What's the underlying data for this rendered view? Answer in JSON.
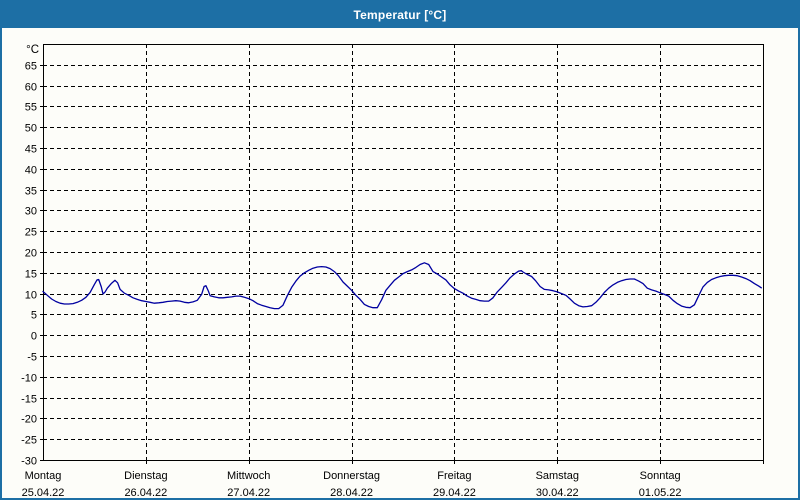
{
  "window": {
    "title": "Temperatur [°C]"
  },
  "colors": {
    "titlebar": "#1d6fa5",
    "window_border": "#1d6fa5",
    "background": "#fdfdf9",
    "frame": "#000000",
    "grid": "#000000",
    "line": "#0000a0",
    "text": "#000000",
    "title_text": "#ffffff"
  },
  "chart_data": {
    "type": "line",
    "title": "Temperatur [°C]",
    "ylabel": "°C",
    "xlabel": "",
    "grid": true,
    "legend": "none",
    "ylim": [
      -30,
      70
    ],
    "yticks": [
      -30,
      -25,
      -20,
      -15,
      -10,
      -5,
      0,
      5,
      10,
      15,
      20,
      25,
      30,
      35,
      40,
      45,
      50,
      55,
      60,
      65
    ],
    "x_unit": "hours",
    "xlim": [
      0,
      168
    ],
    "hours_per_day": 24,
    "days": [
      {
        "name": "Montag",
        "date": "25.04.22"
      },
      {
        "name": "Dienstag",
        "date": "26.04.22"
      },
      {
        "name": "Mittwoch",
        "date": "27.04.22"
      },
      {
        "name": "Donnerstag",
        "date": "28.04.22"
      },
      {
        "name": "Freitag",
        "date": "29.04.22"
      },
      {
        "name": "Samstag",
        "date": "30.04.22"
      },
      {
        "name": "Sonntag",
        "date": "01.05.22"
      }
    ],
    "series": [
      {
        "name": "Temperatur",
        "color": "#0000a0",
        "points": [
          [
            0,
            10.5
          ],
          [
            1,
            9.6
          ],
          [
            2,
            8.7
          ],
          [
            3,
            8.1
          ],
          [
            4,
            7.7
          ],
          [
            5,
            7.5
          ],
          [
            6,
            7.5
          ],
          [
            7,
            7.6
          ],
          [
            8,
            7.9
          ],
          [
            9,
            8.4
          ],
          [
            10,
            9.1
          ],
          [
            11,
            10.3
          ],
          [
            12,
            12.2
          ],
          [
            12.6,
            13.3
          ],
          [
            13,
            13.4
          ],
          [
            13.6,
            11.6
          ],
          [
            14,
            9.9
          ],
          [
            14.5,
            10.4
          ],
          [
            15,
            11.3
          ],
          [
            16,
            12.5
          ],
          [
            16.8,
            13.2
          ],
          [
            17.4,
            12.6
          ],
          [
            18,
            11.0
          ],
          [
            19,
            10.1
          ],
          [
            20,
            9.6
          ],
          [
            21,
            9.0
          ],
          [
            22,
            8.6
          ],
          [
            23,
            8.3
          ],
          [
            24,
            8.1
          ],
          [
            25,
            7.9
          ],
          [
            26,
            7.7
          ],
          [
            27,
            7.8
          ],
          [
            28,
            7.9
          ],
          [
            29,
            8.1
          ],
          [
            30,
            8.2
          ],
          [
            31,
            8.3
          ],
          [
            32,
            8.2
          ],
          [
            33,
            7.9
          ],
          [
            34,
            7.8
          ],
          [
            35,
            8.0
          ],
          [
            36,
            8.4
          ],
          [
            37,
            9.8
          ],
          [
            37.6,
            11.7
          ],
          [
            38,
            11.9
          ],
          [
            38.6,
            10.6
          ],
          [
            39,
            9.5
          ],
          [
            40,
            9.2
          ],
          [
            41,
            9.0
          ],
          [
            42,
            9.0
          ],
          [
            43,
            9.1
          ],
          [
            44,
            9.2
          ],
          [
            45,
            9.4
          ],
          [
            46,
            9.4
          ],
          [
            47,
            9.1
          ],
          [
            48,
            8.8
          ],
          [
            49,
            8.3
          ],
          [
            50,
            7.6
          ],
          [
            51,
            7.2
          ],
          [
            52,
            6.9
          ],
          [
            53,
            6.6
          ],
          [
            54,
            6.4
          ],
          [
            55,
            6.4
          ],
          [
            56,
            7.2
          ],
          [
            57,
            9.5
          ],
          [
            58,
            11.5
          ],
          [
            59,
            13.0
          ],
          [
            60,
            14.2
          ],
          [
            61,
            15.0
          ],
          [
            62,
            15.6
          ],
          [
            63,
            16.1
          ],
          [
            64,
            16.4
          ],
          [
            65,
            16.5
          ],
          [
            66,
            16.4
          ],
          [
            67,
            16.0
          ],
          [
            68,
            15.3
          ],
          [
            69,
            14.2
          ],
          [
            70,
            12.8
          ],
          [
            71,
            11.8
          ],
          [
            72,
            10.8
          ],
          [
            73,
            9.6
          ],
          [
            74,
            8.6
          ],
          [
            75,
            7.4
          ],
          [
            76,
            6.9
          ],
          [
            77,
            6.6
          ],
          [
            78,
            6.6
          ],
          [
            79,
            8.5
          ],
          [
            80,
            10.8
          ],
          [
            81,
            12.0
          ],
          [
            82,
            13.2
          ],
          [
            83,
            14.0
          ],
          [
            84,
            14.8
          ],
          [
            85,
            15.3
          ],
          [
            86,
            15.7
          ],
          [
            87,
            16.3
          ],
          [
            88,
            17.0
          ],
          [
            89,
            17.4
          ],
          [
            90,
            17.0
          ],
          [
            91,
            15.3
          ],
          [
            92,
            14.7
          ],
          [
            93,
            14.0
          ],
          [
            94,
            13.3
          ],
          [
            95,
            12.1
          ],
          [
            96,
            11.2
          ],
          [
            97,
            10.6
          ],
          [
            98,
            10.1
          ],
          [
            99,
            9.4
          ],
          [
            100,
            8.9
          ],
          [
            101,
            8.6
          ],
          [
            102,
            8.3
          ],
          [
            103,
            8.2
          ],
          [
            104,
            8.2
          ],
          [
            105,
            9.0
          ],
          [
            106,
            10.4
          ],
          [
            107,
            11.5
          ],
          [
            108,
            12.6
          ],
          [
            109,
            13.8
          ],
          [
            110,
            14.7
          ],
          [
            111,
            15.4
          ],
          [
            111.6,
            15.5
          ],
          [
            112,
            15.2
          ],
          [
            113,
            14.6
          ],
          [
            114,
            14.1
          ],
          [
            115,
            13.0
          ],
          [
            116,
            11.7
          ],
          [
            117,
            11.0
          ],
          [
            118,
            10.9
          ],
          [
            119,
            10.7
          ],
          [
            120,
            10.4
          ],
          [
            121,
            10.0
          ],
          [
            122,
            9.6
          ],
          [
            123,
            8.7
          ],
          [
            124,
            7.7
          ],
          [
            125,
            7.1
          ],
          [
            126,
            6.8
          ],
          [
            127,
            6.9
          ],
          [
            128,
            7.1
          ],
          [
            129,
            7.9
          ],
          [
            130,
            9.0
          ],
          [
            131,
            10.3
          ],
          [
            132,
            11.3
          ],
          [
            133,
            12.1
          ],
          [
            134,
            12.7
          ],
          [
            135,
            13.1
          ],
          [
            136,
            13.4
          ],
          [
            137,
            13.5
          ],
          [
            138,
            13.5
          ],
          [
            139,
            13.0
          ],
          [
            140,
            12.4
          ],
          [
            141,
            11.3
          ],
          [
            142,
            10.9
          ],
          [
            143,
            10.6
          ],
          [
            144,
            10.2
          ],
          [
            145,
            9.8
          ],
          [
            146,
            9.4
          ],
          [
            147,
            8.4
          ],
          [
            148,
            7.6
          ],
          [
            149,
            7.0
          ],
          [
            150,
            6.7
          ],
          [
            151,
            6.6
          ],
          [
            152,
            7.3
          ],
          [
            153,
            9.5
          ],
          [
            154,
            11.6
          ],
          [
            155,
            12.7
          ],
          [
            156,
            13.4
          ],
          [
            157,
            13.8
          ],
          [
            158,
            14.1
          ],
          [
            159,
            14.3
          ],
          [
            160,
            14.4
          ],
          [
            161,
            14.4
          ],
          [
            162,
            14.3
          ],
          [
            163,
            14.0
          ],
          [
            164,
            13.6
          ],
          [
            165,
            13.1
          ],
          [
            166,
            12.4
          ],
          [
            167,
            11.8
          ],
          [
            167.6,
            11.4
          ]
        ]
      }
    ]
  }
}
